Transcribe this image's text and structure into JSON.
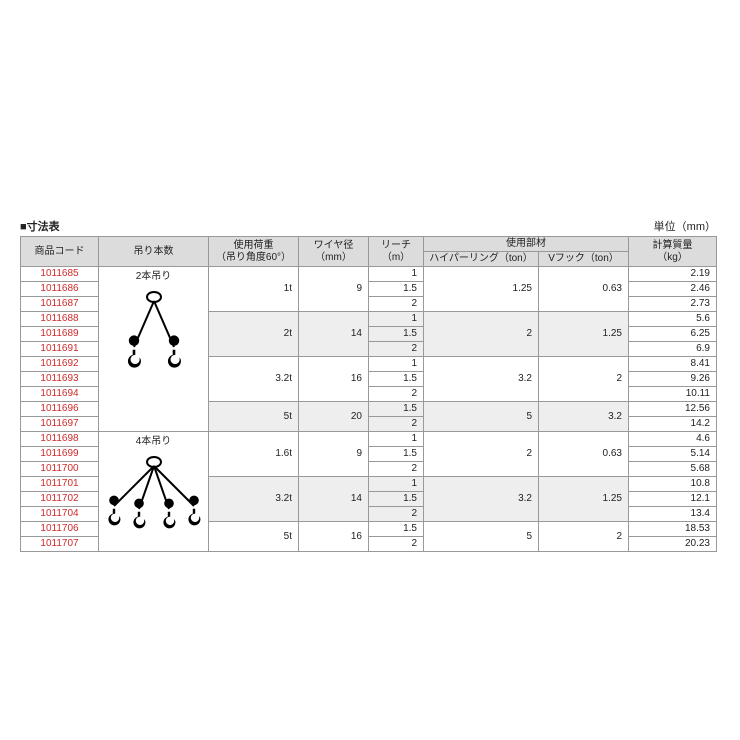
{
  "title": "■寸法表",
  "unit_label": "単位（mm）",
  "headers": {
    "code": "商品コード",
    "sling": "吊り本数",
    "load": "使用荷重",
    "load_sub": "（吊り角度60°）",
    "wire": "ワイヤ径",
    "wire_unit": "（mm）",
    "reach": "リーチ",
    "reach_unit": "（m）",
    "parts": "使用部材",
    "hyper": "ハイパーリング（ton）",
    "vhook": "Vフック（ton）",
    "weight": "計算質量",
    "weight_unit": "（kg）"
  },
  "sling2_label": "2本吊り",
  "sling4_label": "4本吊り",
  "col_widths": {
    "code": 78,
    "sling": 110,
    "load": 90,
    "wire": 70,
    "reach": 55,
    "hyper": 115,
    "vhook": 90,
    "weight": 88
  },
  "colors": {
    "code_text": "#d02a2a",
    "header_bg": "#dcdcdc",
    "gray_bg": "#eeeeee",
    "border": "#999999",
    "text": "#222222"
  },
  "groups2": [
    {
      "load": "1t",
      "wire": "9",
      "hyper": "1.25",
      "vhook": "0.63",
      "rows": [
        {
          "code": "1011685",
          "reach": "1",
          "weight": "2.19"
        },
        {
          "code": "1011686",
          "reach": "1.5",
          "weight": "2.46"
        },
        {
          "code": "1011687",
          "reach": "2",
          "weight": "2.73"
        }
      ],
      "gray": false
    },
    {
      "load": "2t",
      "wire": "14",
      "hyper": "2",
      "vhook": "1.25",
      "rows": [
        {
          "code": "1011688",
          "reach": "1",
          "weight": "5.6"
        },
        {
          "code": "1011689",
          "reach": "1.5",
          "weight": "6.25"
        },
        {
          "code": "1011691",
          "reach": "2",
          "weight": "6.9"
        }
      ],
      "gray": true
    },
    {
      "load": "3.2t",
      "wire": "16",
      "hyper": "3.2",
      "vhook": "2",
      "rows": [
        {
          "code": "1011692",
          "reach": "1",
          "weight": "8.41"
        },
        {
          "code": "1011693",
          "reach": "1.5",
          "weight": "9.26"
        },
        {
          "code": "1011694",
          "reach": "2",
          "weight": "10.11"
        }
      ],
      "gray": false
    },
    {
      "load": "5t",
      "wire": "20",
      "hyper": "5",
      "vhook": "3.2",
      "rows": [
        {
          "code": "1011696",
          "reach": "1.5",
          "weight": "12.56"
        },
        {
          "code": "1011697",
          "reach": "2",
          "weight": "14.2"
        }
      ],
      "gray": true
    }
  ],
  "groups4": [
    {
      "load": "1.6t",
      "wire": "9",
      "hyper": "2",
      "vhook": "0.63",
      "rows": [
        {
          "code": "1011698",
          "reach": "1",
          "weight": "4.6"
        },
        {
          "code": "1011699",
          "reach": "1.5",
          "weight": "5.14"
        },
        {
          "code": "1011700",
          "reach": "2",
          "weight": "5.68"
        }
      ],
      "gray": false
    },
    {
      "load": "3.2t",
      "wire": "14",
      "hyper": "3.2",
      "vhook": "1.25",
      "rows": [
        {
          "code": "1011701",
          "reach": "1",
          "weight": "10.8"
        },
        {
          "code": "1011702",
          "reach": "1.5",
          "weight": "12.1"
        },
        {
          "code": "1011704",
          "reach": "2",
          "weight": "13.4"
        }
      ],
      "gray": true
    },
    {
      "load": "5t",
      "wire": "16",
      "hyper": "5",
      "vhook": "2",
      "rows": [
        {
          "code": "1011706",
          "reach": "1.5",
          "weight": "18.53"
        },
        {
          "code": "1011707",
          "reach": "2",
          "weight": "20.23"
        }
      ],
      "gray": false
    }
  ]
}
